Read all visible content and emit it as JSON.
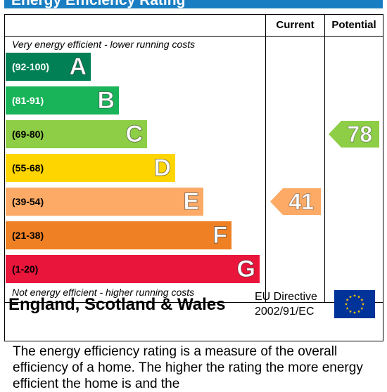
{
  "title": "Energy Efficiency Rating",
  "columns": {
    "current": "Current",
    "potential": "Potential"
  },
  "top_note": "Very energy efficient - lower running costs",
  "bottom_note": "Not energy efficient - higher running costs",
  "bands": [
    {
      "range": "(92-100)",
      "letter": "A",
      "color": "#008054",
      "text_color": "#ffffff"
    },
    {
      "range": "(81-91)",
      "letter": "B",
      "color": "#19b459",
      "text_color": "#ffffff"
    },
    {
      "range": "(69-80)",
      "letter": "C",
      "color": "#8dce46",
      "text_color": "#000000"
    },
    {
      "range": "(55-68)",
      "letter": "D",
      "color": "#ffd500",
      "text_color": "#000000"
    },
    {
      "range": "(39-54)",
      "letter": "E",
      "color": "#fcaa65",
      "text_color": "#000000"
    },
    {
      "range": "(21-38)",
      "letter": "F",
      "color": "#ef8023",
      "text_color": "#000000"
    },
    {
      "range": "(1-20)",
      "letter": "G",
      "color": "#e9153b",
      "text_color": "#000000"
    }
  ],
  "current": {
    "value": "41",
    "band": "E",
    "color": "#fcaa65"
  },
  "potential": {
    "value": "78",
    "band": "C",
    "color": "#8dce46"
  },
  "footer": {
    "country": "England, Scotland & Wales",
    "directive_line1": "EU Directive",
    "directive_line2": "2002/91/EC"
  },
  "description": "The energy efficiency rating is a measure of the overall efficiency of a home. The higher the rating the more energy efficient the home is and the"
}
